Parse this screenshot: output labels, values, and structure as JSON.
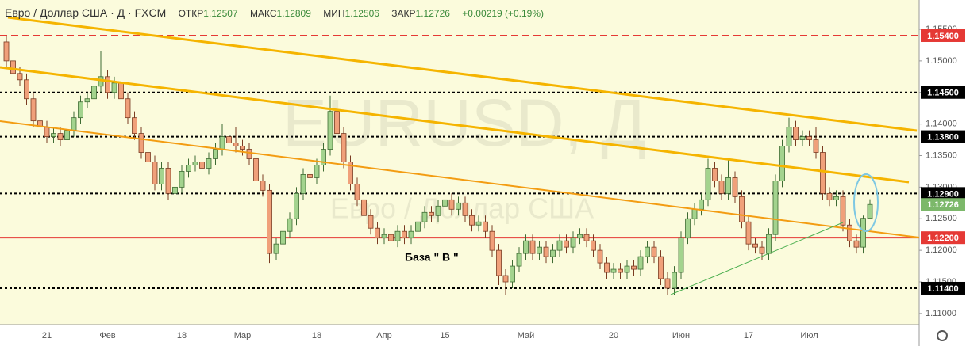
{
  "chart_data": {
    "type": "candlestick",
    "header": {
      "symbol": "Евро / Доллар США · Д · FXCM",
      "open_label": "ОТКР",
      "open": "1.12507",
      "high_label": "МАКС",
      "high": "1.12809",
      "low_label": "МИН",
      "low": "1.12506",
      "close_label": "ЗАКР",
      "close": "1.12726",
      "change": "+0.00219 (+0.19%)"
    },
    "watermark": "EURUSD, Д",
    "watermark_sub": "Евро / Доллар США",
    "annotation": "База \" В \"",
    "categories": [
      null,
      null,
      null,
      null,
      null,
      null,
      "21",
      null,
      null,
      null,
      null,
      null,
      null,
      null,
      null,
      "Фев",
      null,
      null,
      null,
      null,
      null,
      null,
      null,
      null,
      null,
      null,
      "18",
      null,
      null,
      null,
      null,
      null,
      null,
      null,
      null,
      "Мар",
      null,
      null,
      null,
      null,
      null,
      null,
      null,
      null,
      null,
      null,
      "18",
      null,
      null,
      null,
      null,
      null,
      null,
      null,
      null,
      null,
      "Апр",
      null,
      null,
      null,
      null,
      null,
      null,
      null,
      null,
      "15",
      null,
      null,
      null,
      null,
      null,
      null,
      null,
      null,
      null,
      null,
      null,
      "Май",
      null,
      null,
      null,
      null,
      null,
      null,
      null,
      null,
      null,
      null,
      null,
      null,
      "20",
      null,
      null,
      null,
      null,
      null,
      null,
      null,
      null,
      null,
      "Июн",
      null,
      null,
      null,
      null,
      null,
      null,
      null,
      null,
      null,
      "17",
      null,
      null,
      null,
      null,
      null,
      null,
      null,
      null,
      "Июл",
      null,
      null,
      null,
      null,
      null,
      null,
      null,
      null,
      null
    ],
    "open": [
      1.153,
      1.15,
      1.148,
      1.147,
      1.144,
      1.1405,
      1.1395,
      1.138,
      1.1385,
      1.1375,
      1.139,
      1.141,
      1.1435,
      1.144,
      1.146,
      1.1475,
      1.145,
      1.1465,
      1.144,
      1.141,
      1.1385,
      1.1355,
      1.134,
      1.1305,
      1.133,
      1.129,
      1.13,
      1.1325,
      1.1335,
      1.134,
      1.133,
      1.1345,
      1.136,
      1.138,
      1.137,
      1.1365,
      1.136,
      1.1345,
      1.131,
      1.1295,
      1.1195,
      1.121,
      1.123,
      1.125,
      1.129,
      1.132,
      1.1315,
      1.1335,
      1.136,
      1.142,
      1.1385,
      1.134,
      1.1305,
      1.128,
      1.1255,
      1.1235,
      1.122,
      1.1225,
      1.1215,
      1.123,
      1.122,
      1.123,
      1.1245,
      1.126,
      1.1255,
      1.127,
      1.128,
      1.1265,
      1.1275,
      1.1255,
      1.124,
      1.1245,
      1.123,
      1.12,
      1.116,
      1.115,
      1.1175,
      1.1195,
      1.1215,
      1.1195,
      1.1205,
      1.119,
      1.12,
      1.1215,
      1.1205,
      1.122,
      1.1225,
      1.1215,
      1.12,
      1.118,
      1.1165,
      1.117,
      1.1165,
      1.1175,
      1.117,
      1.119,
      1.1205,
      1.119,
      1.1155,
      1.114,
      1.1165,
      1.122,
      1.125,
      1.1265,
      1.128,
      1.133,
      1.131,
      1.129,
      1.1315,
      1.1285,
      1.1245,
      1.121,
      1.1205,
      1.1195,
      1.1225,
      1.131,
      1.1365,
      1.1395,
      1.1375,
      1.138,
      1.1375,
      1.1355,
      1.129,
      1.128,
      1.1285,
      1.124,
      1.1215,
      1.1205,
      1.12507
    ],
    "high": [
      1.154,
      1.151,
      1.149,
      1.148,
      1.145,
      1.1415,
      1.1405,
      1.1395,
      1.1395,
      1.14,
      1.142,
      1.1445,
      1.145,
      1.147,
      1.1515,
      1.1485,
      1.1475,
      1.1475,
      1.145,
      1.142,
      1.1395,
      1.1365,
      1.135,
      1.134,
      1.134,
      1.131,
      1.1335,
      1.1345,
      1.135,
      1.135,
      1.1355,
      1.137,
      1.14,
      1.139,
      1.1395,
      1.1375,
      1.137,
      1.1355,
      1.132,
      1.1305,
      1.122,
      1.124,
      1.126,
      1.13,
      1.133,
      1.133,
      1.1345,
      1.137,
      1.1445,
      1.143,
      1.1395,
      1.135,
      1.1315,
      1.129,
      1.1265,
      1.1245,
      1.1235,
      1.1235,
      1.124,
      1.124,
      1.124,
      1.1255,
      1.127,
      1.127,
      1.128,
      1.13,
      1.129,
      1.1285,
      1.1285,
      1.1265,
      1.1255,
      1.1255,
      1.124,
      1.121,
      1.117,
      1.1185,
      1.1205,
      1.1225,
      1.1225,
      1.1215,
      1.1215,
      1.121,
      1.1225,
      1.1225,
      1.123,
      1.1235,
      1.1235,
      1.1225,
      1.121,
      1.119,
      1.118,
      1.118,
      1.1185,
      1.1185,
      1.12,
      1.1215,
      1.1215,
      1.12,
      1.1165,
      1.1175,
      1.123,
      1.126,
      1.1275,
      1.129,
      1.1345,
      1.134,
      1.132,
      1.1345,
      1.1325,
      1.1295,
      1.1255,
      1.122,
      1.1215,
      1.1235,
      1.132,
      1.1375,
      1.141,
      1.1405,
      1.139,
      1.139,
      1.1395,
      1.1365,
      1.13,
      1.1295,
      1.1295,
      1.125,
      1.1225,
      1.1255,
      1.12809
    ],
    "low": [
      1.149,
      1.147,
      1.146,
      1.143,
      1.1395,
      1.1385,
      1.137,
      1.137,
      1.1365,
      1.1365,
      1.138,
      1.14,
      1.1425,
      1.143,
      1.145,
      1.144,
      1.144,
      1.143,
      1.14,
      1.1375,
      1.1345,
      1.133,
      1.1295,
      1.1295,
      1.128,
      1.128,
      1.129,
      1.1315,
      1.1325,
      1.132,
      1.132,
      1.1335,
      1.135,
      1.136,
      1.1355,
      1.135,
      1.1335,
      1.13,
      1.1285,
      1.118,
      1.1185,
      1.12,
      1.122,
      1.124,
      1.128,
      1.1305,
      1.1305,
      1.1325,
      1.135,
      1.1375,
      1.133,
      1.1295,
      1.127,
      1.1245,
      1.1225,
      1.121,
      1.121,
      1.1195,
      1.1205,
      1.121,
      1.121,
      1.122,
      1.1235,
      1.1245,
      1.1245,
      1.126,
      1.1255,
      1.1255,
      1.1245,
      1.123,
      1.123,
      1.122,
      1.119,
      1.1145,
      1.113,
      1.114,
      1.1165,
      1.1185,
      1.1185,
      1.1185,
      1.118,
      1.118,
      1.119,
      1.1195,
      1.1195,
      1.121,
      1.1205,
      1.119,
      1.117,
      1.1155,
      1.1155,
      1.1155,
      1.1155,
      1.116,
      1.116,
      1.118,
      1.118,
      1.1145,
      1.113,
      1.113,
      1.1155,
      1.121,
      1.124,
      1.1255,
      1.127,
      1.13,
      1.128,
      1.128,
      1.1275,
      1.1235,
      1.12,
      1.1195,
      1.1185,
      1.1185,
      1.1215,
      1.13,
      1.1355,
      1.1365,
      1.1365,
      1.1365,
      1.1345,
      1.128,
      1.127,
      1.127,
      1.123,
      1.1205,
      1.1195,
      1.1195,
      1.12506
    ],
    "close": [
      1.15,
      1.148,
      1.147,
      1.144,
      1.1405,
      1.1395,
      1.138,
      1.1385,
      1.1375,
      1.139,
      1.141,
      1.1435,
      1.144,
      1.146,
      1.1475,
      1.145,
      1.1465,
      1.144,
      1.141,
      1.1385,
      1.1355,
      1.134,
      1.1305,
      1.133,
      1.129,
      1.13,
      1.1325,
      1.1335,
      1.134,
      1.133,
      1.1345,
      1.136,
      1.138,
      1.137,
      1.1365,
      1.136,
      1.1345,
      1.131,
      1.1295,
      1.1195,
      1.121,
      1.123,
      1.125,
      1.129,
      1.132,
      1.1315,
      1.1335,
      1.136,
      1.142,
      1.1385,
      1.134,
      1.1305,
      1.128,
      1.1255,
      1.1235,
      1.122,
      1.1225,
      1.1215,
      1.123,
      1.122,
      1.123,
      1.1245,
      1.126,
      1.1255,
      1.127,
      1.128,
      1.1265,
      1.1275,
      1.1255,
      1.124,
      1.1245,
      1.123,
      1.12,
      1.116,
      1.115,
      1.1175,
      1.1195,
      1.1215,
      1.1195,
      1.1205,
      1.119,
      1.12,
      1.1215,
      1.1205,
      1.122,
      1.1225,
      1.1215,
      1.12,
      1.118,
      1.1165,
      1.117,
      1.1165,
      1.1175,
      1.117,
      1.119,
      1.1205,
      1.119,
      1.1155,
      1.114,
      1.1165,
      1.122,
      1.125,
      1.1265,
      1.128,
      1.133,
      1.131,
      1.129,
      1.1315,
      1.1285,
      1.1245,
      1.121,
      1.1205,
      1.1195,
      1.1225,
      1.131,
      1.1365,
      1.1395,
      1.1375,
      1.138,
      1.1375,
      1.1355,
      1.129,
      1.128,
      1.1285,
      1.124,
      1.1215,
      1.1205,
      1.12507,
      1.12726
    ],
    "up_color": "#a3d38e",
    "down_color": "#f0a07a",
    "ylim": [
      1.10823,
      1.15964
    ],
    "yticks": [
      {
        "value": 1.11,
        "label": "1.11000"
      },
      {
        "value": 1.115,
        "label": "1.11500"
      },
      {
        "value": 1.12,
        "label": "1.12000"
      },
      {
        "value": 1.125,
        "label": "1.12500"
      },
      {
        "value": 1.13,
        "label": "1.13000"
      },
      {
        "value": 1.135,
        "label": "1.13500"
      },
      {
        "value": 1.14,
        "label": "1.14000"
      },
      {
        "value": 1.145,
        "label": "1.14500"
      },
      {
        "value": 1.15,
        "label": "1.15000"
      },
      {
        "value": 1.155,
        "label": "1.15500"
      }
    ],
    "levels": [
      {
        "value": 1.154,
        "label": "1.15400",
        "style": "dashed",
        "color": "#e53935"
      },
      {
        "value": 1.145,
        "label": "1.14500",
        "style": "dotted",
        "color": "#000000"
      },
      {
        "value": 1.138,
        "label": "1.13800",
        "style": "dotted",
        "color": "#000000"
      },
      {
        "value": 1.129,
        "label": "1.12900",
        "style": "dotted",
        "color": "#000000"
      },
      {
        "value": 1.122,
        "label": "1.12200",
        "style": "solid",
        "color": "#e53935"
      },
      {
        "value": 1.114,
        "label": "1.11400",
        "style": "dotted",
        "color": "#000000"
      }
    ],
    "last_price": {
      "value": 1.12726,
      "label": "1.12726",
      "color": "#7cb86a"
    }
  }
}
